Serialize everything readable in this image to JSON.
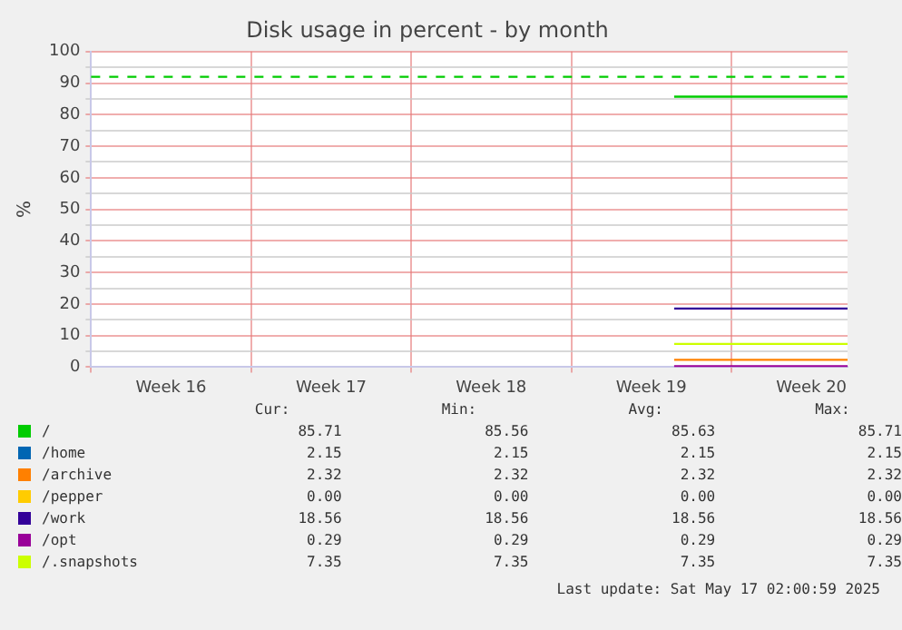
{
  "chart_data": {
    "type": "line",
    "title": "Disk usage in percent - by month",
    "ylabel": "%",
    "xlim": [
      "2025-04-14",
      "2025-05-17T02:00"
    ],
    "xticks": [
      {
        "value": "2025-04-14",
        "label": null
      },
      {
        "value": "2025-04-17T12:00",
        "label": "Week 16"
      },
      {
        "value": "2025-04-21",
        "label": null
      },
      {
        "value": "2025-04-24T12:00",
        "label": "Week 17"
      },
      {
        "value": "2025-04-28",
        "label": null
      },
      {
        "value": "2025-05-01T12:00",
        "label": "Week 18"
      },
      {
        "value": "2025-05-05",
        "label": null
      },
      {
        "value": "2025-05-08T12:00",
        "label": "Week 19"
      },
      {
        "value": "2025-05-12",
        "label": null
      },
      {
        "value": "2025-05-15T12:00",
        "label": "Week 20"
      }
    ],
    "ylim": [
      0,
      100
    ],
    "yticks": [
      0,
      {
        "value": 5,
        "label": null
      },
      10,
      {
        "value": 15,
        "label": null
      },
      20,
      {
        "value": 25,
        "label": null
      },
      30,
      {
        "value": 35,
        "label": null
      },
      40,
      {
        "value": 45,
        "label": null
      },
      50,
      {
        "value": 55,
        "label": null
      },
      60,
      {
        "value": 65,
        "label": null
      },
      70,
      {
        "value": 75,
        "label": null
      },
      80,
      {
        "value": 85,
        "label": null
      },
      90,
      {
        "value": 95,
        "label": null
      },
      100
    ],
    "x": [
      "2025-05-09T12:00",
      "2025-05-17T02:00"
    ],
    "series": [
      {
        "name": "/",
        "color": "#00cc00",
        "values": [
          85.71,
          85.71
        ]
      },
      {
        "name": "/home",
        "color": "#0066b3",
        "values": [
          null,
          null
        ]
      },
      {
        "name": "/archive",
        "color": "#ff8000",
        "values": [
          2.32,
          2.32
        ]
      },
      {
        "name": "/pepper",
        "color": "#ffcc00",
        "values": [
          null,
          null
        ]
      },
      {
        "name": "/work",
        "color": "#330099",
        "values": [
          18.56,
          18.56
        ]
      },
      {
        "name": "/opt",
        "color": "#990099",
        "values": [
          0.29,
          0.29
        ]
      },
      {
        "name": "/.snapshots",
        "color": "#ccff00",
        "values": [
          7.35,
          7.35
        ]
      }
    ],
    "ref_lines": [
      {
        "axis": "y",
        "value": 92,
        "color": "#00cc00",
        "line_style": "dashed"
      }
    ],
    "grid": true,
    "legend": "bottom",
    "marker": "none",
    "line_style": "solid",
    "annotations": [
      "Cur:",
      "Min:",
      "Avg:",
      "Max:",
      "85.71",
      "85.56",
      "85.63",
      "85.71",
      "2.15",
      "2.15",
      "2.15",
      "2.15",
      "2.32",
      "2.32",
      "2.32",
      "2.32",
      "0.00",
      "0.00",
      "0.00",
      "0.00",
      "18.56",
      "18.56",
      "18.56",
      "18.56",
      "0.29",
      "0.29",
      "0.29",
      "0.29",
      "7.35",
      "7.35",
      "7.35",
      "7.35",
      "Last update: Sat May 17 02:00:59 2025"
    ]
  }
}
